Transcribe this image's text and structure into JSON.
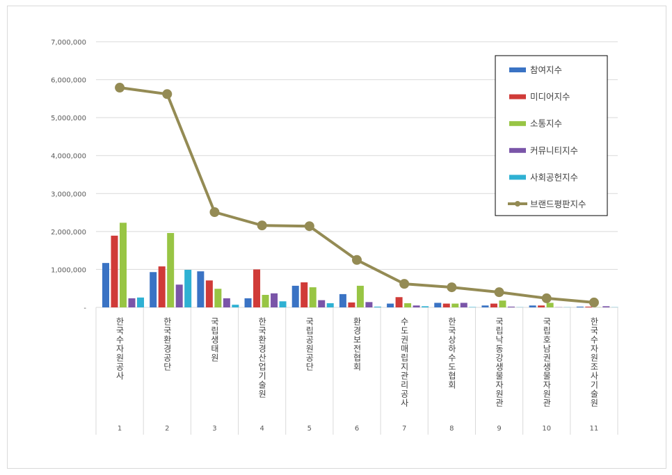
{
  "chart_data": {
    "type": "bar+line",
    "categories": [
      "한국수자원공사",
      "한국환경공단",
      "국립생태원",
      "한국환경산업기술원",
      "국립공원공단",
      "환경보전협회",
      "수도권매립지관리공사",
      "한국상하수도협회",
      "국립낙동강생물자원관",
      "국립호남권생물자원관",
      "한국수자원조사기술원"
    ],
    "category_numbers": [
      "1",
      "2",
      "3",
      "4",
      "5",
      "6",
      "7",
      "8",
      "9",
      "10",
      "11"
    ],
    "ylim": [
      0,
      7000000
    ],
    "yticks": [
      "-",
      "1,000,000",
      "2,000,000",
      "3,000,000",
      "4,000,000",
      "5,000,000",
      "6,000,000",
      "7,000,000"
    ],
    "grid": true,
    "legend_position": "top-right",
    "series": [
      {
        "name": "참여지수",
        "type": "bar",
        "color": "#3a73c4",
        "values": [
          1170000,
          930000,
          950000,
          240000,
          570000,
          350000,
          100000,
          120000,
          50000,
          50000,
          20000
        ]
      },
      {
        "name": "미디어지수",
        "type": "bar",
        "color": "#d03b38",
        "values": [
          1890000,
          1080000,
          710000,
          1000000,
          660000,
          130000,
          270000,
          100000,
          100000,
          50000,
          20000
        ]
      },
      {
        "name": "소통지수",
        "type": "bar",
        "color": "#98c544",
        "values": [
          2230000,
          1960000,
          490000,
          330000,
          530000,
          570000,
          110000,
          100000,
          180000,
          120000,
          5000
        ]
      },
      {
        "name": "커뮤니티지수",
        "type": "bar",
        "color": "#7a55a8",
        "values": [
          240000,
          600000,
          240000,
          370000,
          190000,
          140000,
          50000,
          120000,
          20000,
          5000,
          30000
        ]
      },
      {
        "name": "사회공헌지수",
        "type": "bar",
        "color": "#2fb1d3",
        "values": [
          260000,
          990000,
          70000,
          160000,
          110000,
          20000,
          30000,
          10000,
          5000,
          5000,
          5000
        ]
      },
      {
        "name": "브랜드평판지수",
        "type": "line",
        "color": "#948b54",
        "values": [
          5790000,
          5620000,
          2510000,
          2160000,
          2140000,
          1250000,
          620000,
          530000,
          400000,
          240000,
          130000
        ]
      }
    ]
  }
}
